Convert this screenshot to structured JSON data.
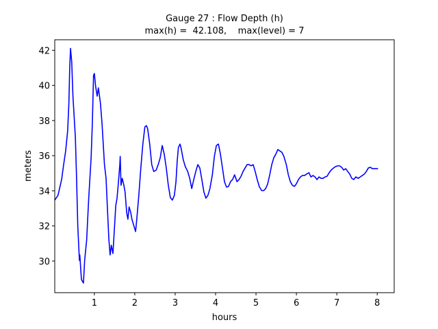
{
  "chart_data": {
    "type": "line",
    "title": "Gauge 27 : Flow Depth (h)",
    "subtitle": "max(h) =  42.108,    max(level) = 7",
    "x_label": "hours",
    "y_label": "meters",
    "xlim": [
      0.02,
      8.42
    ],
    "ylim": [
      28.2,
      42.6
    ],
    "xticks": [
      1,
      2,
      3,
      4,
      5,
      6,
      7,
      8
    ],
    "yticks": [
      30,
      32,
      34,
      36,
      38,
      40,
      42
    ],
    "grid": false,
    "series": [
      {
        "name": "h",
        "color": "#0000ff",
        "x": [
          0.02,
          0.1,
          0.19,
          0.24,
          0.29,
          0.34,
          0.37,
          0.39,
          0.41,
          0.44,
          0.47,
          0.53,
          0.56,
          0.59,
          0.63,
          0.64,
          0.68,
          0.73,
          0.76,
          0.81,
          0.86,
          0.92,
          0.95,
          0.98,
          1.0,
          1.03,
          1.07,
          1.1,
          1.15,
          1.19,
          1.22,
          1.25,
          1.29,
          1.32,
          1.36,
          1.39,
          1.42,
          1.46,
          1.49,
          1.53,
          1.56,
          1.59,
          1.63,
          1.64,
          1.66,
          1.69,
          1.73,
          1.76,
          1.8,
          1.83,
          1.86,
          1.9,
          1.93,
          1.98,
          2.02,
          2.05,
          2.1,
          2.15,
          2.2,
          2.25,
          2.29,
          2.32,
          2.37,
          2.42,
          2.47,
          2.53,
          2.58,
          2.63,
          2.68,
          2.73,
          2.78,
          2.83,
          2.88,
          2.93,
          2.98,
          3.02,
          3.05,
          3.08,
          3.12,
          3.15,
          3.2,
          3.25,
          3.31,
          3.36,
          3.41,
          3.46,
          3.51,
          3.56,
          3.61,
          3.66,
          3.71,
          3.76,
          3.81,
          3.86,
          3.92,
          3.97,
          4.02,
          4.07,
          4.12,
          4.17,
          4.22,
          4.27,
          4.32,
          4.37,
          4.42,
          4.47,
          4.53,
          4.58,
          4.63,
          4.68,
          4.73,
          4.78,
          4.83,
          4.88,
          4.93,
          4.98,
          5.03,
          5.08,
          5.14,
          5.19,
          5.24,
          5.29,
          5.34,
          5.39,
          5.44,
          5.49,
          5.54,
          5.59,
          5.64,
          5.69,
          5.75,
          5.8,
          5.85,
          5.9,
          5.95,
          6.0,
          6.05,
          6.1,
          6.15,
          6.2,
          6.25,
          6.31,
          6.36,
          6.41,
          6.46,
          6.51,
          6.56,
          6.61,
          6.66,
          6.71,
          6.76,
          6.81,
          6.86,
          6.92,
          6.97,
          7.02,
          7.07,
          7.12,
          7.17,
          7.22,
          7.27,
          7.32,
          7.37,
          7.42,
          7.47,
          7.53,
          7.58,
          7.63,
          7.68,
          7.73,
          7.78,
          7.83,
          7.88,
          7.93,
          8.02
        ],
        "values": [
          33.47,
          33.74,
          34.64,
          35.49,
          36.27,
          37.44,
          39.0,
          40.95,
          42.11,
          41.34,
          39.39,
          37.05,
          34.71,
          31.99,
          30.04,
          30.35,
          28.95,
          28.75,
          30.04,
          31.21,
          33.55,
          35.88,
          37.83,
          40.56,
          40.68,
          39.97,
          39.39,
          39.86,
          39.0,
          37.83,
          36.66,
          35.49,
          34.71,
          33.16,
          31.21,
          30.35,
          30.9,
          30.43,
          31.6,
          33.16,
          33.55,
          34.32,
          35.49,
          35.96,
          34.32,
          34.71,
          34.32,
          33.94,
          32.77,
          32.38,
          33.08,
          32.77,
          32.38,
          31.99,
          31.68,
          32.38,
          33.74,
          35.3,
          36.66,
          37.64,
          37.71,
          37.52,
          36.66,
          35.49,
          35.1,
          35.18,
          35.49,
          35.88,
          36.58,
          36.08,
          35.3,
          34.32,
          33.62,
          33.47,
          33.74,
          34.52,
          35.69,
          36.47,
          36.66,
          36.39,
          35.77,
          35.38,
          35.1,
          34.71,
          34.13,
          34.64,
          35.1,
          35.49,
          35.3,
          34.64,
          33.94,
          33.58,
          33.74,
          34.13,
          34.91,
          35.96,
          36.58,
          36.66,
          36.08,
          35.3,
          34.52,
          34.21,
          34.25,
          34.52,
          34.64,
          34.91,
          34.52,
          34.64,
          34.83,
          35.1,
          35.3,
          35.49,
          35.49,
          35.42,
          35.49,
          35.1,
          34.64,
          34.25,
          34.01,
          34.01,
          34.13,
          34.4,
          34.91,
          35.49,
          35.88,
          36.08,
          36.35,
          36.27,
          36.19,
          35.96,
          35.49,
          34.91,
          34.52,
          34.32,
          34.25,
          34.4,
          34.64,
          34.79,
          34.87,
          34.87,
          34.95,
          35.03,
          34.79,
          34.87,
          34.79,
          34.64,
          34.79,
          34.71,
          34.71,
          34.79,
          34.83,
          35.03,
          35.18,
          35.3,
          35.38,
          35.42,
          35.42,
          35.34,
          35.18,
          35.26,
          35.1,
          34.95,
          34.71,
          34.64,
          34.79,
          34.71,
          34.79,
          34.87,
          34.95,
          35.1,
          35.3,
          35.34,
          35.26,
          35.26,
          35.26
        ]
      }
    ]
  }
}
